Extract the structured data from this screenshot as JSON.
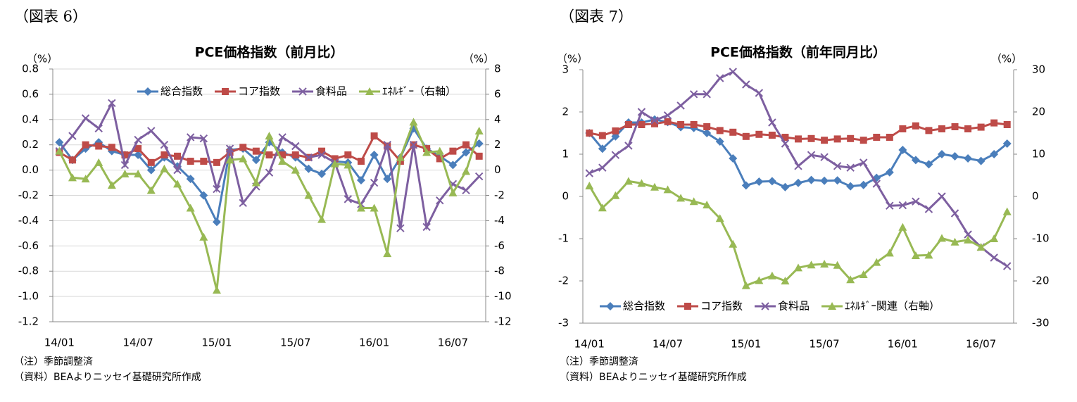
{
  "chart_data": [
    {
      "type": "line",
      "figure_label": "（図表 6）",
      "title": "PCE価格指数（前月比）",
      "y_unit": "（%）",
      "y2_unit": "（%）",
      "categories": [
        "14/01",
        null,
        null,
        null,
        null,
        null,
        "14/07",
        null,
        null,
        null,
        null,
        null,
        "15/01",
        null,
        null,
        null,
        null,
        null,
        "15/07",
        null,
        null,
        null,
        null,
        null,
        "16/01",
        null,
        null,
        null,
        null,
        null,
        "16/07",
        null,
        null
      ],
      "ylim": [
        -1.2,
        0.8
      ],
      "yticks": [
        {
          "value": -1.2,
          "label": "-1.2"
        },
        {
          "value": -1,
          "label": "-1.0"
        },
        -0.8,
        -0.6,
        -0.4,
        -0.2,
        {
          "value": 0,
          "label": "0.0"
        },
        0.2,
        0.4,
        0.6,
        0.8
      ],
      "y2lim": [
        -12,
        8
      ],
      "y2ticks": [
        -12,
        -10,
        -8,
        -6,
        -4,
        -2,
        0,
        2,
        4,
        6,
        8
      ],
      "grid": true,
      "legend": "top",
      "series": [
        {
          "name": "総合指数",
          "color": "#4a7ebb",
          "marker": "diamond",
          "values": [
            0.22,
            0.08,
            0.17,
            0.22,
            0.15,
            0.12,
            0.12,
            0.0,
            0.1,
            0.03,
            -0.07,
            -0.2,
            -0.41,
            0.16,
            0.17,
            0.08,
            0.22,
            0.14,
            0.1,
            0.01,
            -0.03,
            0.07,
            0.06,
            -0.08,
            0.12,
            -0.07,
            0.1,
            0.33,
            0.17,
            0.11,
            0.04,
            0.14,
            0.21
          ]
        },
        {
          "name": "コア指数",
          "color": "#be4b48",
          "marker": "square",
          "values": [
            0.14,
            0.08,
            0.2,
            0.19,
            0.18,
            0.12,
            0.17,
            0.06,
            0.12,
            0.11,
            0.07,
            0.07,
            0.06,
            0.14,
            0.18,
            0.15,
            0.12,
            0.12,
            0.12,
            0.1,
            0.15,
            0.09,
            0.12,
            0.07,
            0.27,
            0.19,
            0.07,
            0.2,
            0.17,
            0.09,
            0.15,
            0.2,
            0.11
          ]
        },
        {
          "name": "食料品",
          "color": "#7d5fa0",
          "marker": "x",
          "values": [
            0.15,
            0.27,
            0.41,
            0.33,
            0.53,
            0.04,
            0.24,
            0.31,
            0.2,
            0.0,
            0.26,
            0.25,
            -0.15,
            0.17,
            -0.26,
            -0.13,
            -0.02,
            0.26,
            0.19,
            0.1,
            0.12,
            0.06,
            -0.23,
            -0.27,
            -0.1,
            0.2,
            -0.46,
            0.2,
            -0.45,
            -0.24,
            -0.11,
            -0.16,
            -0.05
          ]
        },
        {
          "name": "ｴﾈﾙｷﾞｰ（右軸）",
          "color": "#98b954",
          "marker": "triangle",
          "axis": "y2",
          "values": [
            1.5,
            -0.6,
            -0.7,
            0.6,
            -1.2,
            -0.3,
            -0.3,
            -1.6,
            0.1,
            -1.1,
            -3.0,
            -5.3,
            -9.5,
            0.8,
            0.9,
            -1.0,
            2.7,
            0.7,
            0.0,
            -2.0,
            -3.9,
            0.5,
            0.4,
            -3.0,
            -3.0,
            -6.6,
            1.0,
            3.8,
            1.4,
            1.5,
            -1.8,
            -0.1,
            3.1
          ]
        }
      ],
      "notes": [
        "（注）季節調整済",
        "（資料）BEAよりニッセイ基礎研究所作成"
      ]
    },
    {
      "type": "line",
      "figure_label": "（図表 7）",
      "title": "PCE価格指数（前年同月比）",
      "y_unit": "（%）",
      "y2_unit": "（%）",
      "categories": [
        "14/01",
        null,
        null,
        null,
        null,
        null,
        "14/07",
        null,
        null,
        null,
        null,
        null,
        "15/01",
        null,
        null,
        null,
        null,
        null,
        "15/07",
        null,
        null,
        null,
        null,
        null,
        "16/01",
        null,
        null,
        null,
        null,
        null,
        "16/07",
        null,
        null
      ],
      "ylim": [
        -3,
        3
      ],
      "yticks": [
        -3,
        -2,
        -1,
        0,
        1,
        2,
        3
      ],
      "y2lim": [
        -30,
        30
      ],
      "y2ticks": [
        -30,
        -20,
        -10,
        0,
        10,
        20,
        30
      ],
      "grid": false,
      "legend": "bottom",
      "series": [
        {
          "name": "総合指数",
          "color": "#4a7ebb",
          "marker": "diamond",
          "values": [
            1.5,
            1.13,
            1.42,
            1.75,
            1.75,
            1.82,
            1.76,
            1.64,
            1.62,
            1.5,
            1.3,
            0.9,
            0.26,
            0.35,
            0.36,
            0.22,
            0.32,
            0.39,
            0.37,
            0.38,
            0.24,
            0.27,
            0.44,
            0.57,
            1.1,
            0.86,
            0.76,
            1.0,
            0.95,
            0.9,
            0.84,
            1.0,
            1.25
          ]
        },
        {
          "name": "コア指数",
          "color": "#be4b48",
          "marker": "square",
          "values": [
            1.5,
            1.44,
            1.55,
            1.7,
            1.7,
            1.72,
            1.77,
            1.7,
            1.7,
            1.65,
            1.56,
            1.52,
            1.42,
            1.47,
            1.45,
            1.4,
            1.36,
            1.37,
            1.33,
            1.36,
            1.37,
            1.33,
            1.4,
            1.4,
            1.6,
            1.67,
            1.56,
            1.6,
            1.65,
            1.6,
            1.64,
            1.74,
            1.7
          ]
        },
        {
          "name": "食料品",
          "color": "#7d5fa0",
          "marker": "x",
          "values": [
            0.55,
            0.68,
            0.98,
            1.2,
            2.0,
            1.8,
            1.92,
            2.15,
            2.42,
            2.42,
            2.8,
            2.95,
            2.65,
            2.45,
            1.75,
            1.25,
            0.72,
            0.98,
            0.93,
            0.72,
            0.68,
            0.8,
            0.3,
            -0.22,
            -0.21,
            -0.12,
            -0.3,
            0.0,
            -0.4,
            -0.9,
            -1.2,
            -1.45,
            -1.65
          ]
        },
        {
          "name": "ｴﾈﾙｷﾞｰ関連（右軸）",
          "color": "#98b954",
          "marker": "triangle",
          "axis": "y2",
          "values": [
            2.5,
            -2.7,
            0.2,
            3.6,
            3.1,
            2.2,
            1.6,
            -0.4,
            -1.2,
            -2.0,
            -5.2,
            -11.3,
            -21.1,
            -19.9,
            -18.8,
            -20.0,
            -16.9,
            -16.2,
            -16.0,
            -16.3,
            -19.7,
            -18.5,
            -15.6,
            -13.4,
            -7.3,
            -14.0,
            -13.9,
            -9.9,
            -10.8,
            -10.3,
            -12.0,
            -10.0,
            -3.6
          ]
        }
      ],
      "notes": [
        "（注）季節調整済",
        "（資料）BEAよりニッセイ基礎研究所作成"
      ]
    }
  ]
}
